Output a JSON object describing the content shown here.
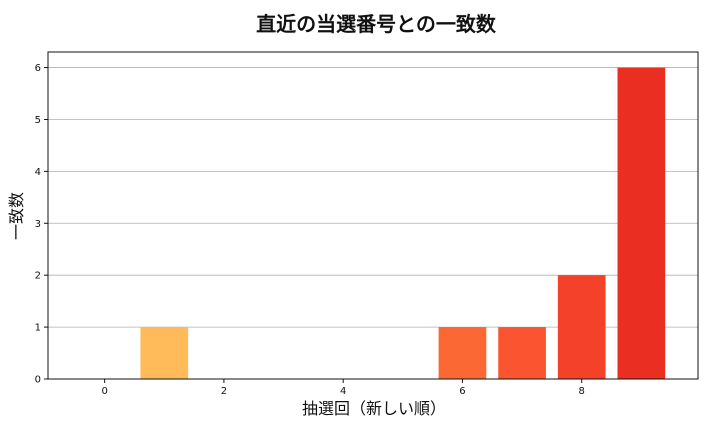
{
  "chart_data": {
    "type": "bar",
    "title": "直近の当選番号との一致数",
    "xlabel": "抽選回（新しい順）",
    "ylabel": "一致数",
    "x": [
      0,
      1,
      2,
      3,
      4,
      5,
      6,
      7,
      8,
      9
    ],
    "values": [
      0,
      1,
      0,
      0,
      0,
      0,
      1,
      1,
      2,
      6
    ],
    "xticks": [
      0,
      2,
      4,
      6,
      8
    ],
    "yticks": [
      0,
      1,
      2,
      3,
      4,
      5,
      6
    ],
    "xlim": [
      -0.95,
      9.95
    ],
    "ylim": [
      0,
      6.3
    ],
    "grid": "horizontal",
    "bar_colors": [
      "#FFC35F",
      "#FFBB5A",
      "#FFA852",
      "#FF944A",
      "#FF7F3F",
      "#FF6A36",
      "#FC6833",
      "#FA5530",
      "#F4422A",
      "#EA2F22"
    ],
    "axis_color": "#111111",
    "grid_color": "#B0B0B0"
  }
}
